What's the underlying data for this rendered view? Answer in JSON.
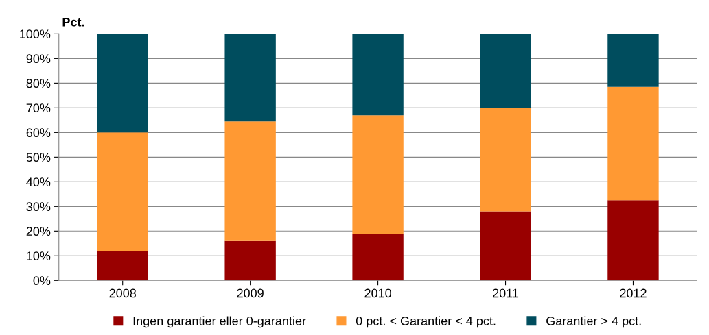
{
  "chart_data": {
    "type": "bar",
    "stacked": true,
    "ylabel": "Pct.",
    "categories": [
      "2008",
      "2009",
      "2010",
      "2011",
      "2012"
    ],
    "series": [
      {
        "name": "Ingen garantier eller 0-garantier",
        "color": "#990000",
        "values": [
          12,
          16,
          19,
          28,
          32.5
        ]
      },
      {
        "name": "0 pct. < Garantier < 4 pct.",
        "color": "#ff9933",
        "values": [
          48,
          48.5,
          48,
          42,
          46
        ]
      },
      {
        "name": "Garantier > 4 pct.",
        "color": "#004d5e",
        "values": [
          40,
          35.5,
          33,
          30,
          21.5
        ]
      }
    ],
    "ylim": [
      0,
      100
    ],
    "yticks": [
      {
        "value": 0,
        "label": "0%"
      },
      {
        "value": 10,
        "label": "10%"
      },
      {
        "value": 20,
        "label": "20%"
      },
      {
        "value": 30,
        "label": "30%"
      },
      {
        "value": 40,
        "label": "40%"
      },
      {
        "value": 50,
        "label": "50%"
      },
      {
        "value": 60,
        "label": "60%"
      },
      {
        "value": 70,
        "label": "70%"
      },
      {
        "value": 80,
        "label": "80%"
      },
      {
        "value": 90,
        "label": "90%"
      },
      {
        "value": 100,
        "label": "100%"
      }
    ],
    "grid": "y",
    "legend": "bottom"
  }
}
